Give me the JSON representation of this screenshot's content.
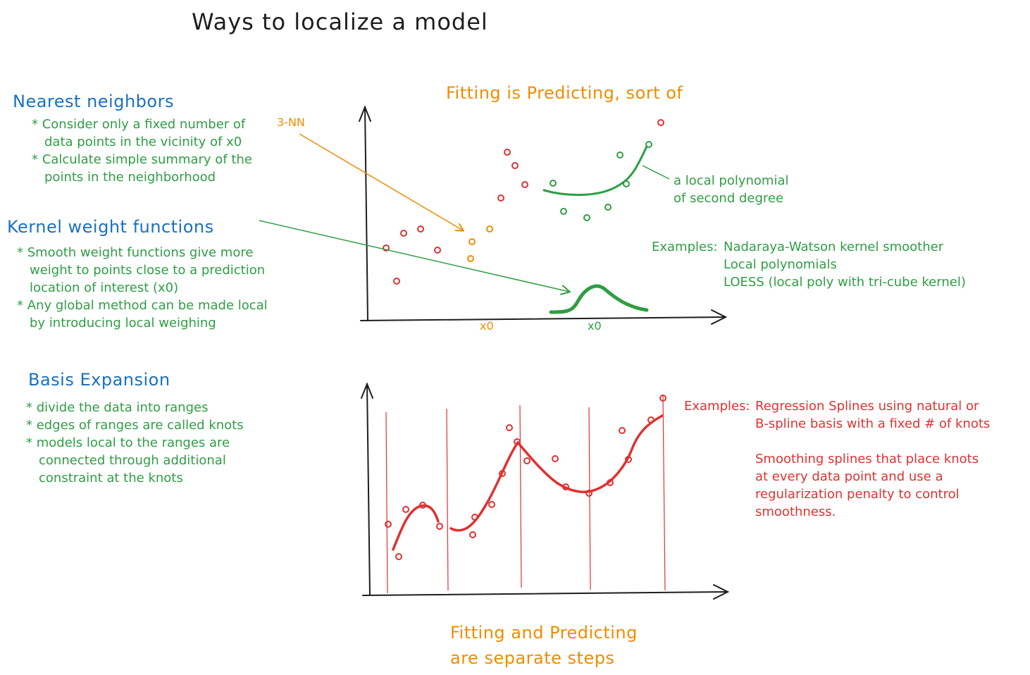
{
  "title": "Ways to localize a model",
  "top_chart": {
    "title": "Fitting is Predicting, sort of",
    "knn_label": "3-NN",
    "poly_label_lines": [
      "a local polynomial",
      "of second degree"
    ],
    "x0_labels": [
      "x0",
      "x0"
    ],
    "examples_label": "Examples:",
    "examples": [
      "Nadaraya-Watson kernel smoother",
      "Local polynomials",
      "LOESS (local poly with tri-cube kernel)"
    ],
    "colors": {
      "red": "#e03131",
      "green": "#2f9e44",
      "orange": "#f08c00"
    }
  },
  "nearest_neighbors": {
    "heading": "Nearest neighbors",
    "bullets": [
      [
        "* Consider only a fixed number of",
        "data points in the vicinity of x0"
      ],
      [
        "* Calculate simple summary of the",
        "points in the neighborhood"
      ]
    ]
  },
  "kernel": {
    "heading": "Kernel weight functions",
    "bullets": [
      [
        "* Smooth weight functions give more",
        "weight to points close to a prediction",
        "location of interest (x0)"
      ],
      [
        "* Any global method can be made local",
        "by introducing local weighing"
      ]
    ]
  },
  "basis": {
    "heading": "Basis Expansion",
    "bullets": [
      [
        "* divide the data into ranges"
      ],
      [
        "* edges of ranges are called knots"
      ],
      [
        "* models local to the ranges are",
        "connected through additional",
        "constraint at the knots"
      ]
    ]
  },
  "bottom_chart": {
    "title_lines": [
      "Fitting and Predicting",
      "are separate steps"
    ],
    "examples_label": "Examples:",
    "examples": [
      "Regression Splines using natural or",
      "B-spline basis with a fixed # of knots"
    ],
    "smoothing": [
      "Smoothing splines that place knots",
      "at every data point and use a",
      "regularization penalty to control",
      "smoothness."
    ]
  }
}
